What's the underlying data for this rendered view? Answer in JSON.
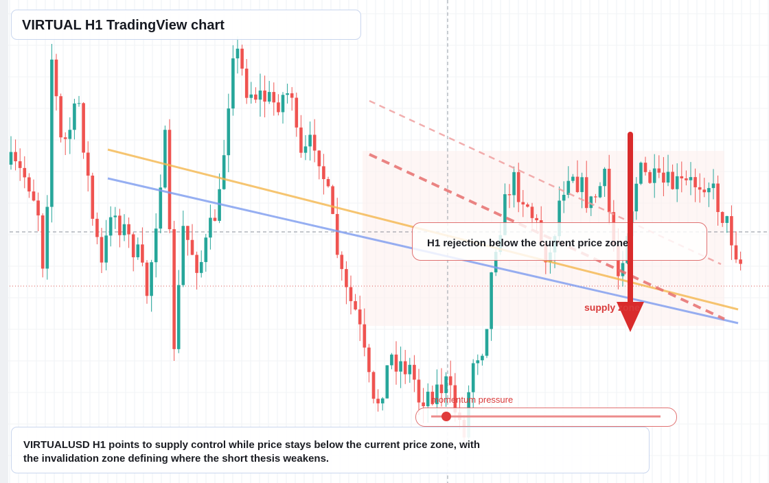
{
  "header": {
    "title": "VIRTUAL H1 TradingView chart"
  },
  "callout": {
    "text": "H1 rejection below the current price zone"
  },
  "zone_label": "supply zone",
  "momentum": {
    "label": "momentum pressure"
  },
  "caption": {
    "lines": [
      "VIRTUALUSD H1 points to supply control while price stays below the current price zone, with",
      "the invalidation zone defining where the short thesis weakens."
    ]
  }
}
